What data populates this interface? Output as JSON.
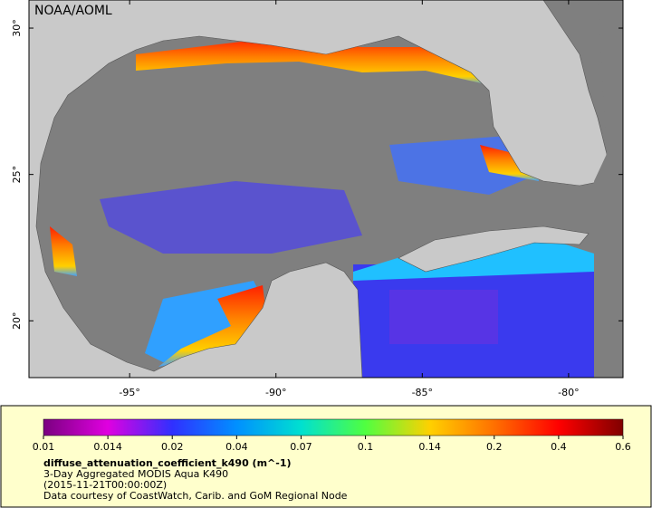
{
  "chart_data": {
    "type": "map",
    "title": "NOAA/AOML",
    "xlim": [
      -98.44,
      -78.14
    ],
    "ylim": [
      18.06,
      30.96
    ],
    "xticks": [
      {
        "value": -95,
        "label": "-95°"
      },
      {
        "value": -90,
        "label": "-90°"
      },
      {
        "value": -85,
        "label": "-85°"
      },
      {
        "value": -80,
        "label": "-80°"
      }
    ],
    "yticks": [
      {
        "value": 20,
        "label": "20°"
      },
      {
        "value": 25,
        "label": "25°"
      },
      {
        "value": 30,
        "label": "30°"
      }
    ],
    "colorbar": {
      "label": "diffuse_attenuation_coefficient_k490 (m^-1)",
      "ticks": [
        0.01,
        0.014,
        0.02,
        0.04,
        0.07,
        0.1,
        0.14,
        0.2,
        0.4,
        0.6
      ],
      "colors": [
        "#7a0080",
        "#e000e0",
        "#3030ff",
        "#0090ff",
        "#00e0d0",
        "#50ff40",
        "#ffd000",
        "#ff7000",
        "#ff0000",
        "#800000"
      ]
    },
    "notes": [
      "3-Day Aggregated MODIS Aqua K490",
      "(2015-11-21T00:00:00Z)",
      "Data courtesy of CoastWatch, Carib. and GoM Regional Node"
    ]
  }
}
